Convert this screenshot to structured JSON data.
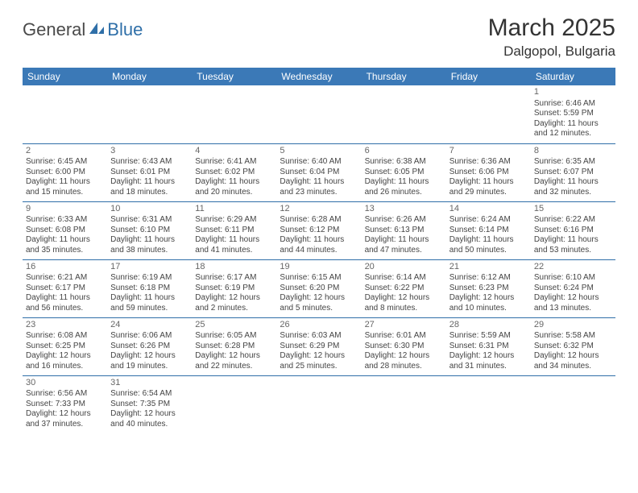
{
  "logo": {
    "general": "General",
    "blue": "Blue"
  },
  "title": "March 2025",
  "location": "Dalgopol, Bulgaria",
  "colors": {
    "header_bg": "#3b79b7",
    "header_fg": "#ffffff",
    "rule": "#2f6fa8",
    "text": "#444444",
    "logo_gray": "#4a4a4a",
    "logo_blue": "#2f6fa8",
    "page_bg": "#ffffff"
  },
  "typography": {
    "title_fontsize": 30,
    "location_fontsize": 17,
    "day_header_fontsize": 12,
    "cell_fontsize": 10,
    "font_family": "Arial"
  },
  "calendar": {
    "type": "table",
    "columns": [
      "Sunday",
      "Monday",
      "Tuesday",
      "Wednesday",
      "Thursday",
      "Friday",
      "Saturday"
    ],
    "weeks": [
      [
        null,
        null,
        null,
        null,
        null,
        null,
        {
          "d": "1",
          "sr": "Sunrise: 6:46 AM",
          "ss": "Sunset: 5:59 PM",
          "dl1": "Daylight: 11 hours",
          "dl2": "and 12 minutes."
        }
      ],
      [
        {
          "d": "2",
          "sr": "Sunrise: 6:45 AM",
          "ss": "Sunset: 6:00 PM",
          "dl1": "Daylight: 11 hours",
          "dl2": "and 15 minutes."
        },
        {
          "d": "3",
          "sr": "Sunrise: 6:43 AM",
          "ss": "Sunset: 6:01 PM",
          "dl1": "Daylight: 11 hours",
          "dl2": "and 18 minutes."
        },
        {
          "d": "4",
          "sr": "Sunrise: 6:41 AM",
          "ss": "Sunset: 6:02 PM",
          "dl1": "Daylight: 11 hours",
          "dl2": "and 20 minutes."
        },
        {
          "d": "5",
          "sr": "Sunrise: 6:40 AM",
          "ss": "Sunset: 6:04 PM",
          "dl1": "Daylight: 11 hours",
          "dl2": "and 23 minutes."
        },
        {
          "d": "6",
          "sr": "Sunrise: 6:38 AM",
          "ss": "Sunset: 6:05 PM",
          "dl1": "Daylight: 11 hours",
          "dl2": "and 26 minutes."
        },
        {
          "d": "7",
          "sr": "Sunrise: 6:36 AM",
          "ss": "Sunset: 6:06 PM",
          "dl1": "Daylight: 11 hours",
          "dl2": "and 29 minutes."
        },
        {
          "d": "8",
          "sr": "Sunrise: 6:35 AM",
          "ss": "Sunset: 6:07 PM",
          "dl1": "Daylight: 11 hours",
          "dl2": "and 32 minutes."
        }
      ],
      [
        {
          "d": "9",
          "sr": "Sunrise: 6:33 AM",
          "ss": "Sunset: 6:08 PM",
          "dl1": "Daylight: 11 hours",
          "dl2": "and 35 minutes."
        },
        {
          "d": "10",
          "sr": "Sunrise: 6:31 AM",
          "ss": "Sunset: 6:10 PM",
          "dl1": "Daylight: 11 hours",
          "dl2": "and 38 minutes."
        },
        {
          "d": "11",
          "sr": "Sunrise: 6:29 AM",
          "ss": "Sunset: 6:11 PM",
          "dl1": "Daylight: 11 hours",
          "dl2": "and 41 minutes."
        },
        {
          "d": "12",
          "sr": "Sunrise: 6:28 AM",
          "ss": "Sunset: 6:12 PM",
          "dl1": "Daylight: 11 hours",
          "dl2": "and 44 minutes."
        },
        {
          "d": "13",
          "sr": "Sunrise: 6:26 AM",
          "ss": "Sunset: 6:13 PM",
          "dl1": "Daylight: 11 hours",
          "dl2": "and 47 minutes."
        },
        {
          "d": "14",
          "sr": "Sunrise: 6:24 AM",
          "ss": "Sunset: 6:14 PM",
          "dl1": "Daylight: 11 hours",
          "dl2": "and 50 minutes."
        },
        {
          "d": "15",
          "sr": "Sunrise: 6:22 AM",
          "ss": "Sunset: 6:16 PM",
          "dl1": "Daylight: 11 hours",
          "dl2": "and 53 minutes."
        }
      ],
      [
        {
          "d": "16",
          "sr": "Sunrise: 6:21 AM",
          "ss": "Sunset: 6:17 PM",
          "dl1": "Daylight: 11 hours",
          "dl2": "and 56 minutes."
        },
        {
          "d": "17",
          "sr": "Sunrise: 6:19 AM",
          "ss": "Sunset: 6:18 PM",
          "dl1": "Daylight: 11 hours",
          "dl2": "and 59 minutes."
        },
        {
          "d": "18",
          "sr": "Sunrise: 6:17 AM",
          "ss": "Sunset: 6:19 PM",
          "dl1": "Daylight: 12 hours",
          "dl2": "and 2 minutes."
        },
        {
          "d": "19",
          "sr": "Sunrise: 6:15 AM",
          "ss": "Sunset: 6:20 PM",
          "dl1": "Daylight: 12 hours",
          "dl2": "and 5 minutes."
        },
        {
          "d": "20",
          "sr": "Sunrise: 6:14 AM",
          "ss": "Sunset: 6:22 PM",
          "dl1": "Daylight: 12 hours",
          "dl2": "and 8 minutes."
        },
        {
          "d": "21",
          "sr": "Sunrise: 6:12 AM",
          "ss": "Sunset: 6:23 PM",
          "dl1": "Daylight: 12 hours",
          "dl2": "and 10 minutes."
        },
        {
          "d": "22",
          "sr": "Sunrise: 6:10 AM",
          "ss": "Sunset: 6:24 PM",
          "dl1": "Daylight: 12 hours",
          "dl2": "and 13 minutes."
        }
      ],
      [
        {
          "d": "23",
          "sr": "Sunrise: 6:08 AM",
          "ss": "Sunset: 6:25 PM",
          "dl1": "Daylight: 12 hours",
          "dl2": "and 16 minutes."
        },
        {
          "d": "24",
          "sr": "Sunrise: 6:06 AM",
          "ss": "Sunset: 6:26 PM",
          "dl1": "Daylight: 12 hours",
          "dl2": "and 19 minutes."
        },
        {
          "d": "25",
          "sr": "Sunrise: 6:05 AM",
          "ss": "Sunset: 6:28 PM",
          "dl1": "Daylight: 12 hours",
          "dl2": "and 22 minutes."
        },
        {
          "d": "26",
          "sr": "Sunrise: 6:03 AM",
          "ss": "Sunset: 6:29 PM",
          "dl1": "Daylight: 12 hours",
          "dl2": "and 25 minutes."
        },
        {
          "d": "27",
          "sr": "Sunrise: 6:01 AM",
          "ss": "Sunset: 6:30 PM",
          "dl1": "Daylight: 12 hours",
          "dl2": "and 28 minutes."
        },
        {
          "d": "28",
          "sr": "Sunrise: 5:59 AM",
          "ss": "Sunset: 6:31 PM",
          "dl1": "Daylight: 12 hours",
          "dl2": "and 31 minutes."
        },
        {
          "d": "29",
          "sr": "Sunrise: 5:58 AM",
          "ss": "Sunset: 6:32 PM",
          "dl1": "Daylight: 12 hours",
          "dl2": "and 34 minutes."
        }
      ],
      [
        {
          "d": "30",
          "sr": "Sunrise: 6:56 AM",
          "ss": "Sunset: 7:33 PM",
          "dl1": "Daylight: 12 hours",
          "dl2": "and 37 minutes."
        },
        {
          "d": "31",
          "sr": "Sunrise: 6:54 AM",
          "ss": "Sunset: 7:35 PM",
          "dl1": "Daylight: 12 hours",
          "dl2": "and 40 minutes."
        },
        null,
        null,
        null,
        null,
        null
      ]
    ]
  }
}
